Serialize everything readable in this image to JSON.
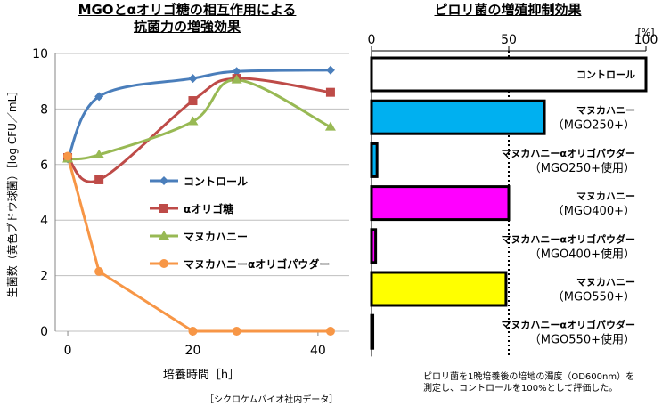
{
  "left_chart": {
    "title_line1": "MGOとαオリゴ糖の相互作用による",
    "title_line2": "抗菌力の増強効果",
    "ylabel": "生菌数（黄色ブドウ球菌）［log CFU／mL］",
    "xlabel": "培養時間［h］",
    "source": "［シクロケムバイオ社内データ］"
  },
  "right_chart": {
    "title": "ピロリ菌の増殖抑制効果",
    "unit": "[%]",
    "note_line1": "ピロリ菌を1晩培養後の培地の濁度（OD600nm）を",
    "note_line2": "測定し、コントロールを100%として評価した。"
  },
  "chart_data": [
    {
      "type": "line",
      "title": "MGOとαオリゴ糖の相互作用による抗菌力の増強効果",
      "xlabel": "培養時間［h］",
      "ylabel": "生菌数（黄色ブドウ球菌）［log CFU／mL］",
      "xlim": [
        -2,
        45
      ],
      "ylim": [
        0,
        10
      ],
      "xticks": [
        0,
        20,
        40
      ],
      "yticks": [
        0,
        2,
        4,
        6,
        8,
        10
      ],
      "grid": "horizontal",
      "legend": "center",
      "series": [
        {
          "name": "コントロール",
          "color": "#4a7ebb",
          "marker": "diamond",
          "x": [
            0,
            5,
            20,
            27,
            42
          ],
          "y": [
            6.2,
            8.45,
            9.1,
            9.35,
            9.4
          ]
        },
        {
          "name": "αオリゴ糖",
          "color": "#be4b48",
          "marker": "square",
          "x": [
            0,
            5,
            20,
            27,
            42
          ],
          "y": [
            6.25,
            5.45,
            8.3,
            9.1,
            8.6
          ]
        },
        {
          "name": "マヌカハニー",
          "color": "#98b954",
          "marker": "triangle",
          "x": [
            0,
            5,
            20,
            27,
            42
          ],
          "y": [
            6.2,
            6.35,
            7.55,
            9.05,
            7.35
          ]
        },
        {
          "name": "マヌカハニーαオリゴパウダー",
          "color": "#f79646",
          "marker": "circle",
          "x": [
            0,
            5,
            20,
            27,
            42
          ],
          "y": [
            6.3,
            2.15,
            0.0,
            0.0,
            0.0
          ]
        }
      ]
    },
    {
      "type": "bar",
      "orientation": "horizontal",
      "title": "ピロリ菌の増殖抑制効果",
      "unit": "[%]",
      "xlim": [
        0,
        100
      ],
      "xticks": [
        0,
        50,
        100
      ],
      "reference_line": 50,
      "bars": [
        {
          "line1": "コントロール",
          "line2": "",
          "value": 100,
          "color": "#ffffff"
        },
        {
          "line1": "マヌカハニー",
          "line2": "（MGO250+）",
          "value": 63,
          "color": "#00b0f0"
        },
        {
          "line1": "マヌカハニーαオリゴパウダー",
          "line2": "（MGO250+使用）",
          "value": 2,
          "color": "#00b0f0"
        },
        {
          "line1": "マヌカハニー",
          "line2": "（MGO400+）",
          "value": 50,
          "color": "#ff00ff"
        },
        {
          "line1": "マヌカハニーαオリゴパウダー",
          "line2": "（MGO400+使用）",
          "value": 1.5,
          "color": "#ff00ff"
        },
        {
          "line1": "マヌカハニー",
          "line2": "（MGO550+）",
          "value": 49,
          "color": "#ffff00"
        },
        {
          "line1": "マヌカハニーαオリゴパウダー",
          "line2": "（MGO550+使用）",
          "value": 0.5,
          "color": "#ffff00"
        }
      ]
    }
  ]
}
